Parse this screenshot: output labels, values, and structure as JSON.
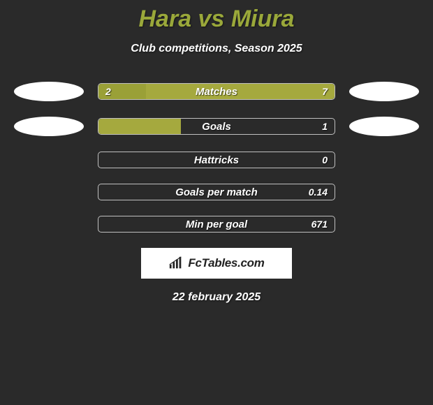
{
  "title": "Hara vs Miura",
  "subtitle": "Club competitions, Season 2025",
  "date": "22 february 2025",
  "logo_text": "FcTables.com",
  "colors": {
    "background": "#2a2a2a",
    "accent": "#a5a93e",
    "title_color": "#9aa83a",
    "text_white": "#ffffff",
    "bar_border": "#c0c0c0",
    "logo_bg": "#ffffff",
    "logo_text": "#222222"
  },
  "stats": [
    {
      "label": "Matches",
      "left_value": "2",
      "right_value": "7",
      "left_fill_pct": 20,
      "right_fill_pct": 0,
      "full_fill_right": true,
      "show_left_badge": true,
      "show_right_badge": true
    },
    {
      "label": "Goals",
      "left_value": "",
      "right_value": "1",
      "left_fill_pct": 35,
      "right_fill_pct": 0,
      "full_fill_right": false,
      "show_left_badge": true,
      "show_right_badge": true
    },
    {
      "label": "Hattricks",
      "left_value": "",
      "right_value": "0",
      "left_fill_pct": 0,
      "right_fill_pct": 0,
      "full_fill_right": false,
      "show_left_badge": false,
      "show_right_badge": false
    },
    {
      "label": "Goals per match",
      "left_value": "",
      "right_value": "0.14",
      "left_fill_pct": 0,
      "right_fill_pct": 0,
      "full_fill_right": false,
      "show_left_badge": false,
      "show_right_badge": false
    },
    {
      "label": "Min per goal",
      "left_value": "",
      "right_value": "671",
      "left_fill_pct": 0,
      "right_fill_pct": 0,
      "full_fill_right": false,
      "show_left_badge": false,
      "show_right_badge": false
    }
  ]
}
